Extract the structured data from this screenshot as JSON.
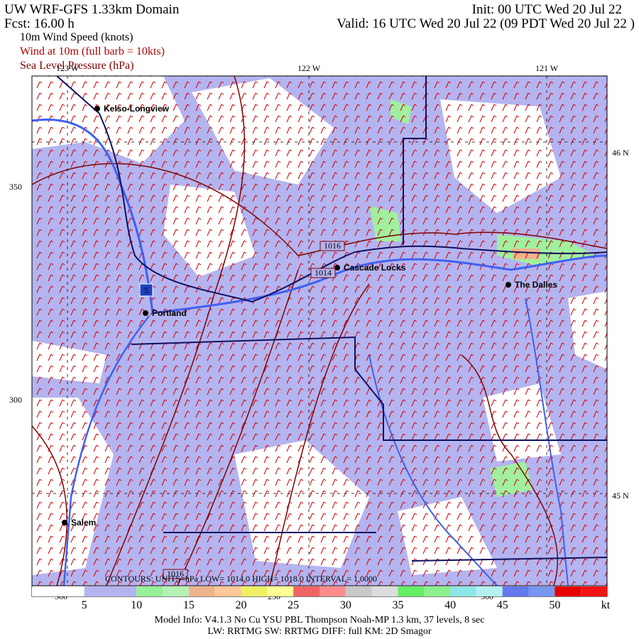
{
  "header": {
    "title": "UW WRF-GFS 1.33km Domain",
    "init": "Init: 00 UTC Wed 20 Jul 22",
    "fcst": "Fcst:   16.00 h",
    "valid": "Valid: 16 UTC Wed 20 Jul 22   (09 PDT Wed 20 Jul 22  )",
    "fields": [
      {
        "text": "10m Wind Speed (knots)",
        "color": "#000000"
      },
      {
        "text": "Wind at 10m (full barb = 10kts)",
        "color": "#b00000"
      },
      {
        "text": "Sea Level Pressure (hPa)",
        "color": "#800000"
      }
    ]
  },
  "map": {
    "lon_labels": [
      "123 W",
      "122 W",
      "121 W"
    ],
    "lat_labels": [
      "46 N",
      "45 N"
    ],
    "grid_labels": [
      "350",
      "300"
    ],
    "bottom_grid_labels": [
      "300",
      "250",
      "300"
    ],
    "cities": [
      "Kelso-Longview",
      "Portland",
      "Cascade Locks",
      "The Dalles",
      "Salem"
    ],
    "highway": "5",
    "isobar_labels": [
      "1016",
      "1014",
      "1016"
    ],
    "contours": "CONTOURS: UNITS=hPa    LOW= 1014.0    HIGH= 1018.0    INTERVAL= 1.0000"
  },
  "colorbar": {
    "labels": [
      "5",
      "10",
      "15",
      "20",
      "25",
      "30",
      "35",
      "40",
      "45",
      "50"
    ],
    "unit": "kt",
    "colors": [
      "#ffffff",
      "#ffffff",
      "#b4b4f0",
      "#b4b4f0",
      "#96f096",
      "#b4f0b4",
      "#f0b48c",
      "#ffc896",
      "#f0f064",
      "#ffff96",
      "#f06464",
      "#ff8c8c",
      "#c8c8c8",
      "#dcdcdc",
      "#64f064",
      "#8cf08c",
      "#8ce6e6",
      "#b4f0f0",
      "#6478f0",
      "#7896f0",
      "#e60000",
      "#f01414"
    ]
  },
  "footer": [
    "Model Info: V4.1.3    No Cu    YSU PBL  Thompson    Noah-MP   1.3 km,   37 levels,    8 sec",
    "LW: RRTMG SW: RRTMG    DIFF: full    KM: 2D Smagor"
  ]
}
